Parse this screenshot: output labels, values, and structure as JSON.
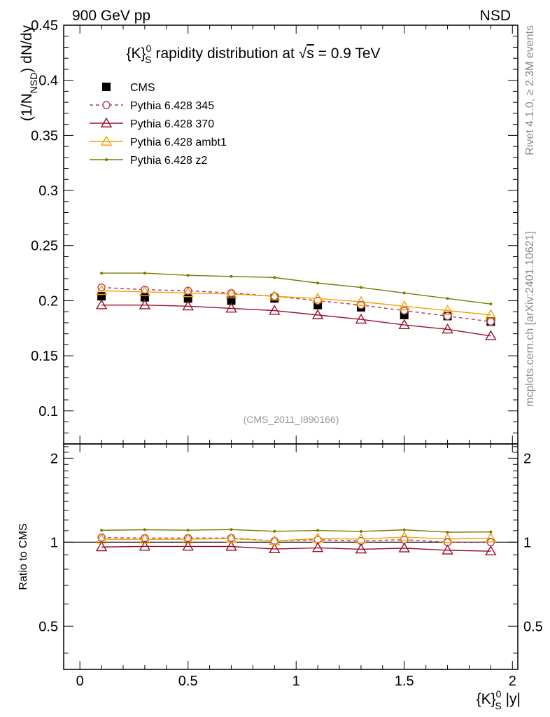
{
  "header": {
    "left": "900 GeV pp",
    "right": "NSD"
  },
  "side": {
    "rivet": "Rivet 4.1.0, ≥ 2.3M events",
    "mcplots": "mcplots.cern.ch [arXiv:2401.10621]"
  },
  "chart_data": {
    "type": "line",
    "title": "{K}^0_S rapidity distribution at √s = 0.9 TeV",
    "title_parts": {
      "pre": "{K}",
      "sup": "0",
      "sub": "S",
      "mid": " rapidity distribution at ",
      "sqrt": "√",
      "s": "s",
      "post": " = 0.9 TeV"
    },
    "analysis_tag": "(CMS_2011_I890166)",
    "xlabel": "{K}^0_S |y|",
    "xlabel_parts": {
      "pre": "{K}",
      "sup": "0",
      "sub": "S",
      "post": " |y|"
    },
    "ylabel": "(1/N_NSD) dN/dy",
    "ylabel_parts": {
      "pre": "(1/N",
      "sub": "NSD",
      "post": ") dN/dy"
    },
    "ratio_ylabel": "Ratio to CMS",
    "xlim": [
      -0.075,
      2.025
    ],
    "ylim": [
      0.07,
      0.45
    ],
    "ratio_ylim": [
      0.35,
      2.25
    ],
    "x_ticks": [
      0,
      0.5,
      1,
      1.5,
      2
    ],
    "x_tick_labels": [
      "0",
      "0.5",
      "1",
      "1.5",
      "2"
    ],
    "y_ticks": [
      0.1,
      0.15,
      0.2,
      0.25,
      0.3,
      0.35,
      0.4,
      0.45
    ],
    "y_tick_labels": [
      "0.1",
      "0.15",
      "0.2",
      "0.25",
      "0.3",
      "0.35",
      "0.4",
      "0.45"
    ],
    "ratio_ticks": [
      0.5,
      1,
      2
    ],
    "ratio_tick_labels": [
      "0.5",
      "1",
      "2"
    ],
    "ratio_tick_labels_right": [
      "0.5",
      "1",
      "2"
    ],
    "x": [
      0.1,
      0.3,
      0.5,
      0.7,
      0.9,
      1.1,
      1.3,
      1.5,
      1.7,
      1.9
    ],
    "data": {
      "name": "CMS",
      "values": [
        0.204,
        0.203,
        0.202,
        0.2,
        0.202,
        0.196,
        0.194,
        0.187,
        0.186,
        0.181
      ]
    },
    "series": [
      {
        "name": "Pythia 6.428 345",
        "color": "#b03a5a",
        "marker": "open-circle",
        "dashed": true,
        "values": [
          0.212,
          0.21,
          0.209,
          0.207,
          0.204,
          0.2,
          0.196,
          0.191,
          0.186,
          0.181
        ]
      },
      {
        "name": "Pythia 6.428 370",
        "color": "#9a0e2a",
        "marker": "open-triangle",
        "dashed": false,
        "values": [
          0.196,
          0.196,
          0.195,
          0.193,
          0.191,
          0.187,
          0.183,
          0.178,
          0.174,
          0.168
        ]
      },
      {
        "name": "Pythia 6.428 ambt1",
        "color": "#f5a000",
        "marker": "open-triangle",
        "dashed": false,
        "values": [
          0.209,
          0.208,
          0.207,
          0.206,
          0.204,
          0.202,
          0.199,
          0.195,
          0.191,
          0.187
        ]
      },
      {
        "name": "Pythia 6.428 z2",
        "color": "#7a7a00",
        "marker": "dot",
        "dashed": false,
        "values": [
          0.225,
          0.225,
          0.223,
          0.222,
          0.221,
          0.216,
          0.212,
          0.207,
          0.202,
          0.197
        ]
      }
    ]
  }
}
